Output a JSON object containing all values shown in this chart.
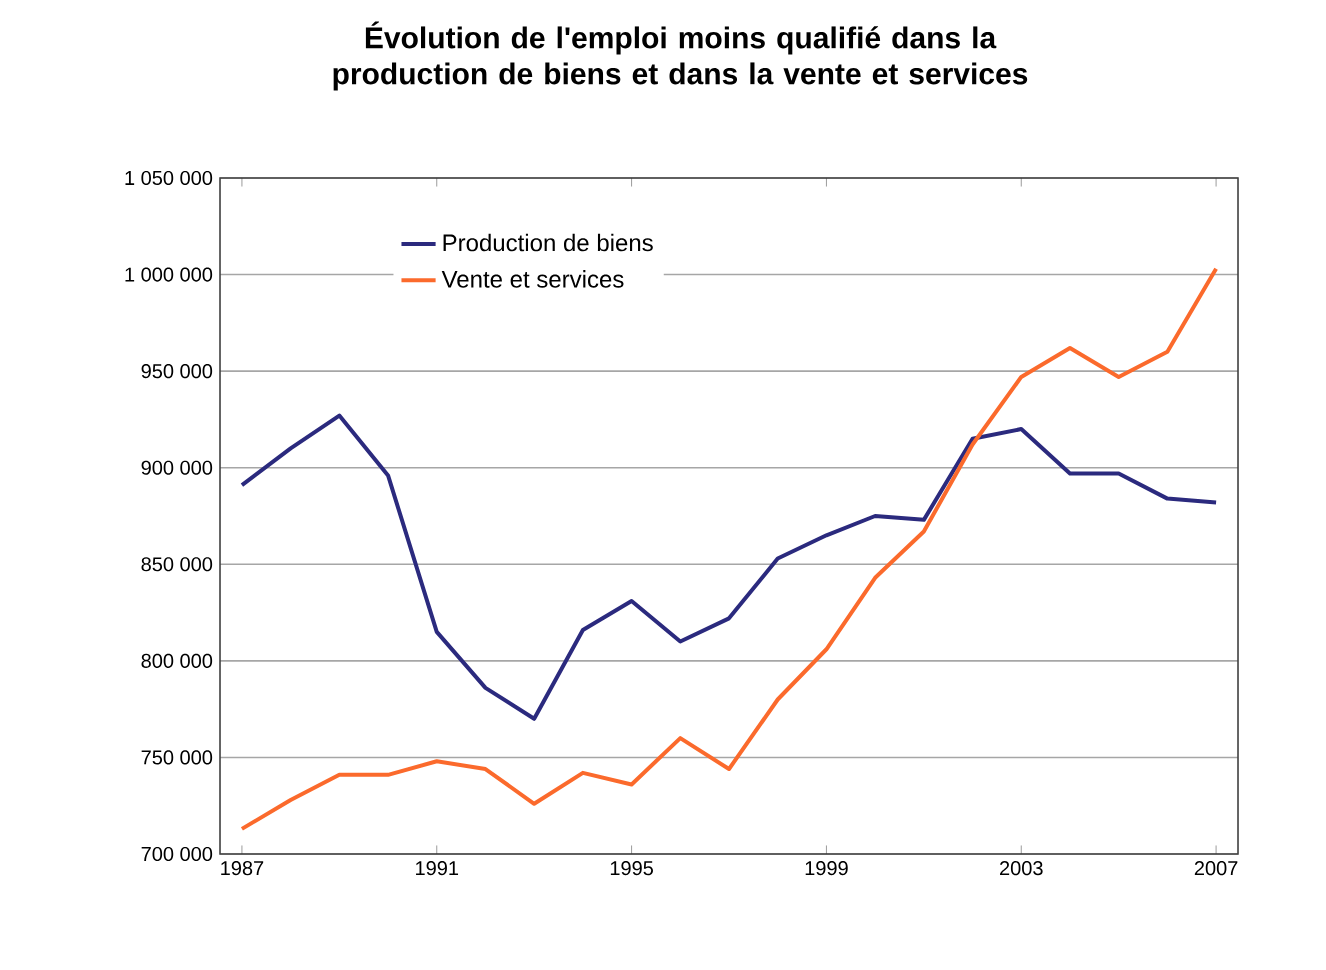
{
  "chart_data": {
    "type": "line",
    "title": "Évolution de l'emploi moins qualifié dans la production de biens et dans la vente et services",
    "x": [
      1987,
      1988,
      1989,
      1990,
      1991,
      1992,
      1993,
      1994,
      1995,
      1996,
      1997,
      1998,
      1999,
      2000,
      2001,
      2002,
      2003,
      2004,
      2005,
      2006,
      2007
    ],
    "series": [
      {
        "name": "Production de biens",
        "color": "#2b2a7e",
        "values": [
          891000,
          910000,
          927000,
          896000,
          815000,
          786000,
          770000,
          816000,
          831000,
          810000,
          822000,
          853000,
          865000,
          875000,
          873000,
          915000,
          920000,
          897000,
          897000,
          884000,
          882000
        ]
      },
      {
        "name": "Vente et services",
        "color": "#fb6a2c",
        "values": [
          713000,
          728000,
          741000,
          741000,
          748000,
          744000,
          726000,
          742000,
          736000,
          760000,
          744000,
          780000,
          806000,
          843000,
          867000,
          912000,
          947000,
          962000,
          947000,
          960000,
          1003000
        ]
      }
    ],
    "xlim": [
      1986.55,
      2007.45
    ],
    "xticks": [
      1987,
      1991,
      1995,
      1999,
      2003,
      2007
    ],
    "ylim": [
      700000,
      1050000
    ],
    "yticks": [
      {
        "value": 700000,
        "label": "700 000"
      },
      {
        "value": 750000,
        "label": "750 000"
      },
      {
        "value": 800000,
        "label": "800 000"
      },
      {
        "value": 850000,
        "label": "850 000"
      },
      {
        "value": 900000,
        "label": "900 000"
      },
      {
        "value": 950000,
        "label": "950 000"
      },
      {
        "value": 1000000,
        "label": "1 000 000"
      },
      {
        "value": 1050000,
        "label": "1 050 000"
      }
    ],
    "grid": "y",
    "legend": "top left",
    "marker": "none",
    "line_style": "solid"
  }
}
